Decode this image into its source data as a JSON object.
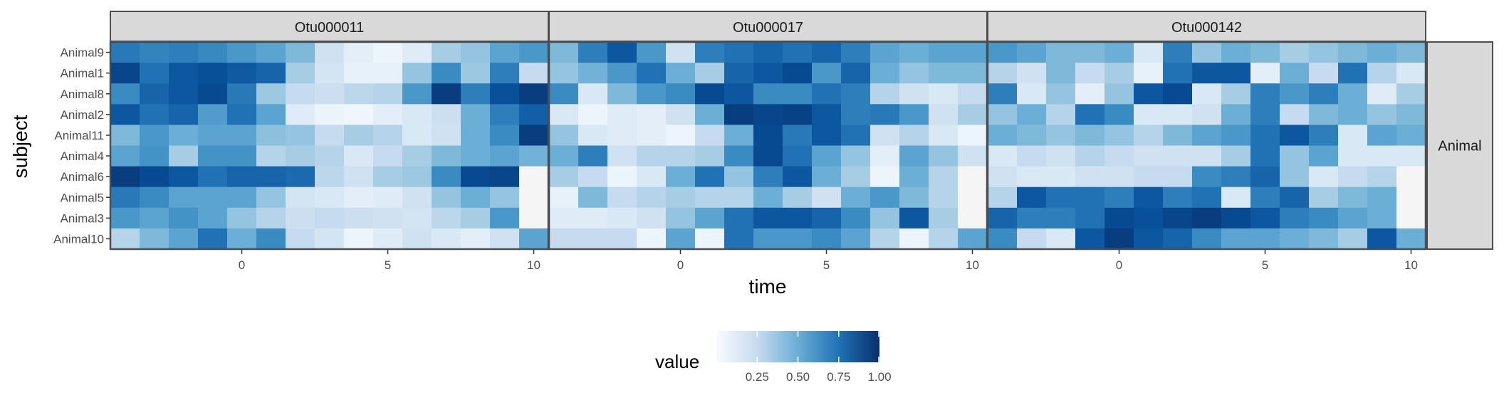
{
  "chart_data": {
    "type": "heatmap",
    "xlabel": "time",
    "ylabel": "subject",
    "facet_row_label": "Animal",
    "legend": {
      "title": "value",
      "ticks": [
        "0.25",
        "0.50",
        "0.75",
        "1.00"
      ],
      "tick_values": [
        0.25,
        0.5,
        0.75,
        1.0
      ],
      "range": [
        0,
        1
      ],
      "position": "bottom"
    },
    "x_ticks": [
      0,
      5,
      10
    ],
    "x_ticks_labels": [
      "0",
      "5",
      "10"
    ],
    "xlim": [
      -4.5,
      10.5
    ],
    "x": [
      -4,
      -3,
      -2,
      -1,
      0,
      1,
      2,
      3,
      4,
      5,
      6,
      7,
      8,
      9,
      10
    ],
    "subjects": [
      "Animal9",
      "Animal1",
      "Animal8",
      "Animal2",
      "Animal11",
      "Animal4",
      "Animal6",
      "Animal5",
      "Animal3",
      "Animal10"
    ],
    "color_low": "#f7fbff",
    "color_high": "#08306b",
    "na_color": "#f5f5f5",
    "panels": [
      {
        "name": "Otu000011",
        "values": [
          [
            0.72,
            0.68,
            0.7,
            0.66,
            0.6,
            0.55,
            0.45,
            0.2,
            0.1,
            0.05,
            0.12,
            0.35,
            0.4,
            0.55,
            0.6
          ],
          [
            0.92,
            0.75,
            0.85,
            0.88,
            0.84,
            0.8,
            0.35,
            0.18,
            0.08,
            0.08,
            0.4,
            0.65,
            0.38,
            0.7,
            0.25
          ],
          [
            0.65,
            0.8,
            0.85,
            0.9,
            0.72,
            0.38,
            0.25,
            0.22,
            0.28,
            0.3,
            0.6,
            0.95,
            0.7,
            0.88,
            0.95
          ],
          [
            0.85,
            0.75,
            0.8,
            0.58,
            0.75,
            0.55,
            0.12,
            0.06,
            0.04,
            0.1,
            0.15,
            0.22,
            0.5,
            0.7,
            0.82
          ],
          [
            0.45,
            0.6,
            0.5,
            0.55,
            0.55,
            0.42,
            0.4,
            0.25,
            0.35,
            0.3,
            0.15,
            0.2,
            0.5,
            0.65,
            0.95
          ],
          [
            0.55,
            0.62,
            0.35,
            0.62,
            0.62,
            0.3,
            0.35,
            0.3,
            0.15,
            0.25,
            0.35,
            0.45,
            0.5,
            0.55,
            0.48
          ],
          [
            0.95,
            0.9,
            0.85,
            0.75,
            0.8,
            0.8,
            0.78,
            0.28,
            0.2,
            0.35,
            0.38,
            0.65,
            0.9,
            0.92,
            null
          ],
          [
            0.72,
            0.65,
            0.55,
            0.55,
            0.55,
            0.4,
            0.18,
            0.15,
            0.1,
            0.12,
            0.2,
            0.4,
            0.5,
            0.4,
            null
          ],
          [
            0.6,
            0.55,
            0.62,
            0.55,
            0.4,
            0.3,
            0.22,
            0.25,
            0.22,
            0.2,
            0.18,
            0.28,
            0.35,
            0.6,
            null
          ],
          [
            0.3,
            0.45,
            0.55,
            0.75,
            0.5,
            0.65,
            0.25,
            0.18,
            0.05,
            0.12,
            0.2,
            0.15,
            0.1,
            0.2,
            0.55
          ]
        ]
      },
      {
        "name": "Otu000017",
        "values": [
          [
            0.45,
            0.7,
            0.85,
            0.6,
            0.2,
            0.7,
            0.75,
            0.8,
            0.75,
            0.8,
            0.7,
            0.55,
            0.5,
            0.55,
            0.55
          ],
          [
            0.4,
            0.48,
            0.6,
            0.75,
            0.5,
            0.35,
            0.8,
            0.85,
            0.9,
            0.6,
            0.8,
            0.5,
            0.4,
            0.45,
            0.45
          ],
          [
            0.65,
            0.15,
            0.45,
            0.6,
            0.65,
            0.9,
            0.85,
            0.65,
            0.65,
            0.75,
            0.7,
            0.3,
            0.2,
            0.15,
            0.25
          ],
          [
            0.15,
            0.05,
            0.12,
            0.1,
            0.2,
            0.5,
            0.95,
            0.92,
            0.93,
            0.85,
            0.7,
            0.72,
            0.6,
            0.2,
            0.35
          ],
          [
            0.4,
            0.15,
            0.12,
            0.1,
            0.05,
            0.25,
            0.5,
            0.9,
            0.72,
            0.85,
            0.75,
            0.2,
            0.3,
            0.15,
            0.05
          ],
          [
            0.5,
            0.7,
            0.2,
            0.3,
            0.3,
            0.35,
            0.65,
            0.9,
            0.75,
            0.55,
            0.4,
            0.1,
            0.55,
            0.4,
            0.2
          ],
          [
            0.35,
            0.25,
            0.05,
            0.15,
            0.5,
            0.75,
            0.4,
            0.7,
            0.85,
            0.5,
            0.35,
            0.05,
            0.5,
            0.3,
            null
          ],
          [
            0.08,
            0.45,
            0.25,
            0.3,
            0.35,
            0.3,
            0.3,
            0.5,
            0.35,
            0.2,
            0.5,
            0.6,
            0.45,
            0.3,
            null
          ],
          [
            0.12,
            0.12,
            0.15,
            0.2,
            0.4,
            0.55,
            0.75,
            0.85,
            0.85,
            0.8,
            0.65,
            0.4,
            0.85,
            0.35,
            null
          ],
          [
            0.25,
            0.25,
            0.25,
            0.05,
            0.55,
            0.05,
            0.75,
            0.6,
            0.6,
            0.65,
            0.55,
            0.3,
            0.05,
            0.3,
            0.55
          ]
        ]
      },
      {
        "name": "Otu000142",
        "values": [
          [
            0.6,
            0.55,
            0.45,
            0.45,
            0.5,
            0.15,
            0.7,
            0.4,
            0.5,
            0.45,
            0.35,
            0.4,
            0.45,
            0.5,
            0.45
          ],
          [
            0.3,
            0.2,
            0.45,
            0.25,
            0.35,
            0.08,
            0.75,
            0.85,
            0.85,
            0.1,
            0.5,
            0.25,
            0.75,
            0.3,
            0.15
          ],
          [
            0.7,
            0.15,
            0.4,
            0.1,
            0.4,
            0.85,
            0.9,
            0.15,
            0.35,
            0.7,
            0.6,
            0.7,
            0.5,
            0.12,
            0.35
          ],
          [
            0.4,
            0.5,
            0.3,
            0.75,
            0.65,
            0.15,
            0.15,
            0.2,
            0.5,
            0.7,
            0.25,
            0.45,
            0.5,
            0.4,
            0.45
          ],
          [
            0.5,
            0.45,
            0.4,
            0.45,
            0.4,
            0.3,
            0.45,
            0.55,
            0.6,
            0.75,
            0.85,
            0.7,
            0.15,
            0.55,
            0.5
          ],
          [
            0.15,
            0.25,
            0.2,
            0.3,
            0.25,
            0.2,
            0.2,
            0.2,
            0.35,
            0.75,
            0.4,
            0.55,
            0.15,
            0.15,
            0.15
          ],
          [
            0.2,
            0.15,
            0.15,
            0.2,
            0.2,
            0.25,
            0.25,
            0.65,
            0.7,
            0.8,
            0.4,
            0.15,
            0.25,
            0.3,
            null
          ],
          [
            0.3,
            0.85,
            0.75,
            0.75,
            0.7,
            0.85,
            0.7,
            0.75,
            0.15,
            0.7,
            0.8,
            0.35,
            0.45,
            0.5,
            null
          ],
          [
            0.8,
            0.7,
            0.7,
            0.75,
            0.9,
            0.88,
            0.92,
            0.95,
            0.9,
            0.85,
            0.7,
            0.65,
            0.55,
            0.5,
            null
          ],
          [
            0.65,
            0.25,
            0.15,
            0.85,
            0.95,
            0.85,
            0.8,
            0.65,
            0.55,
            0.55,
            0.5,
            0.45,
            0.35,
            0.85,
            0.5
          ]
        ]
      }
    ]
  }
}
